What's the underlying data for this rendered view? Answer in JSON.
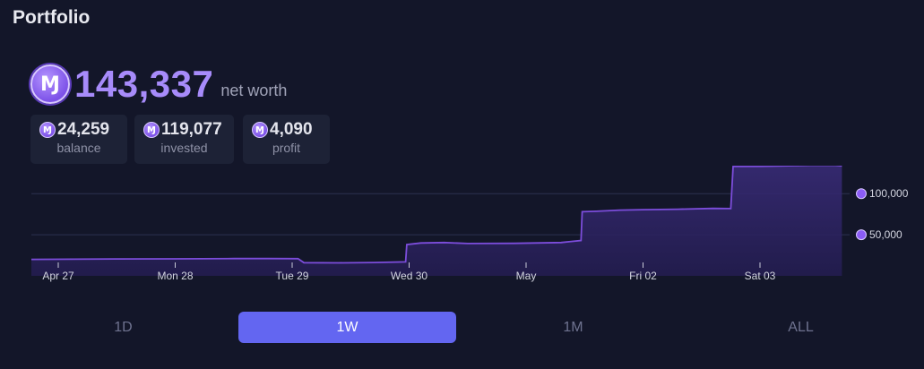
{
  "header": {
    "title": "Portfolio"
  },
  "summary": {
    "net_worth": "143,337",
    "net_worth_label": "net worth",
    "stats": [
      {
        "value": "24,259",
        "label": "balance"
      },
      {
        "value": "119,077",
        "label": "invested"
      },
      {
        "value": "4,090",
        "label": "profit"
      }
    ],
    "currency_icon": "mana-coin-icon",
    "currency_glyph": "Ɱ"
  },
  "periods": {
    "options": [
      "1D",
      "1W",
      "1M",
      "ALL"
    ],
    "selected": "1W"
  },
  "colors": {
    "accent": "#a78bfa",
    "line": "#7c4ddb",
    "selected_period": "#6366f1",
    "background": "#131629"
  },
  "chart_data": {
    "type": "area",
    "x_ticks": [
      "Apr 27",
      "Mon 28",
      "Tue 29",
      "Wed 30",
      "May",
      "Fri 02",
      "Sat 03"
    ],
    "y_ticks": [
      "50,000",
      "100,000"
    ],
    "y_tick_values": [
      50000,
      100000
    ],
    "ylim": [
      0,
      134000
    ],
    "xlim": [
      0,
      6.7
    ],
    "grid": true,
    "series": [
      {
        "points": [
          [
            -0.24,
            20000
          ],
          [
            0.5,
            20600
          ],
          [
            1.0,
            20700
          ],
          [
            1.5,
            21000
          ],
          [
            1.8,
            21000
          ],
          [
            2.05,
            20900
          ],
          [
            2.1,
            16000
          ],
          [
            2.4,
            15800
          ],
          [
            2.7,
            16200
          ],
          [
            2.97,
            17000
          ],
          [
            2.98,
            38000
          ],
          [
            3.1,
            40000
          ],
          [
            3.3,
            40500
          ],
          [
            3.5,
            39300
          ],
          [
            3.9,
            39600
          ],
          [
            4.3,
            40500
          ],
          [
            4.47,
            43000
          ],
          [
            4.48,
            78000
          ],
          [
            4.6,
            78500
          ],
          [
            4.8,
            80000
          ],
          [
            5.0,
            80500
          ],
          [
            5.3,
            81000
          ],
          [
            5.6,
            82000
          ],
          [
            5.75,
            81800
          ],
          [
            5.77,
            133000
          ],
          [
            6.0,
            133200
          ],
          [
            6.3,
            134000
          ],
          [
            6.6,
            135000
          ],
          [
            6.7,
            133800
          ]
        ]
      }
    ]
  }
}
